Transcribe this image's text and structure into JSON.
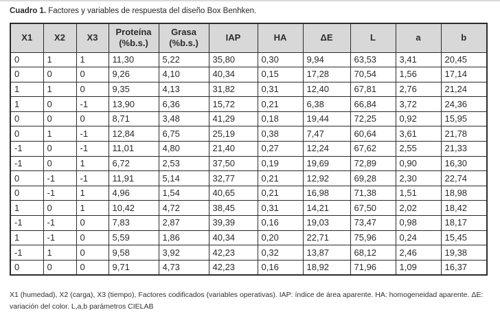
{
  "caption": {
    "label": "Cuadro 1.",
    "text": " Factores y variables de respuesta del diseño Box Benhken."
  },
  "table": {
    "header_bg": "#d8d8d8",
    "border_color": "#2a2a2a",
    "columns": [
      {
        "label": "X1",
        "sublabel": ""
      },
      {
        "label": "X2",
        "sublabel": ""
      },
      {
        "label": "X3",
        "sublabel": ""
      },
      {
        "label": "Proteína",
        "sublabel": "(%b.s.)"
      },
      {
        "label": "Grasa",
        "sublabel": "(%b.s.)"
      },
      {
        "label": "IAP",
        "sublabel": ""
      },
      {
        "label": "HA",
        "sublabel": ""
      },
      {
        "label": "ΔE",
        "sublabel": ""
      },
      {
        "label": "L",
        "sublabel": ""
      },
      {
        "label": "a",
        "sublabel": ""
      },
      {
        "label": "b",
        "sublabel": ""
      }
    ],
    "rows": [
      [
        "0",
        "1",
        "1",
        "11,30",
        "5,22",
        "35,80",
        "0,30",
        "9,94",
        "63,53",
        "3,41",
        "20,45"
      ],
      [
        "0",
        "0",
        "0",
        "9,26",
        "4,10",
        "40,34",
        "0,15",
        "17,28",
        "70,54",
        "1,56",
        "17,14"
      ],
      [
        "1",
        "1",
        "0",
        "9,35",
        "4,13",
        "31,82",
        "0,31",
        "12,40",
        "67,81",
        "2,76",
        "21,24"
      ],
      [
        "1",
        "0",
        "-1",
        "13,90",
        "6,36",
        "15,72",
        "0,21",
        "6,38",
        "66,84",
        "3,72",
        "24,36"
      ],
      [
        "0",
        "0",
        "0",
        "8,71",
        "3,48",
        "41,29",
        "0,18",
        "19,44",
        "72,25",
        "0,92",
        "15,95"
      ],
      [
        "0",
        "1",
        "-1",
        "12,84",
        "6,75",
        "25,19",
        "0,38",
        "7,47",
        "60,64",
        "3,61",
        "21,78"
      ],
      [
        "-1",
        "0",
        "-1",
        "11,01",
        "4,80",
        "21,40",
        "0,27",
        "12,24",
        "67,62",
        "2,55",
        "21,33"
      ],
      [
        "-1",
        "0",
        "1",
        "6,72",
        "2,53",
        "37,50",
        "0,19",
        "19,69",
        "72,89",
        "0,90",
        "16,30"
      ],
      [
        "0",
        "-1",
        "-1",
        "11,91",
        "5,14",
        "32,77",
        "0,21",
        "12,92",
        "69,28",
        "2,30",
        "22,74"
      ],
      [
        "0",
        "-1",
        "1",
        "4,96",
        "1,54",
        "40,65",
        "0,21",
        "16,98",
        "71,38",
        "1,51",
        "18,98"
      ],
      [
        "1",
        "0",
        "1",
        "10,42",
        "4,72",
        "38,45",
        "0,31",
        "14,21",
        "67,50",
        "2,02",
        "18,42"
      ],
      [
        "-1",
        "-1",
        "0",
        "7,83",
        "2,87",
        "39,39",
        "0,16",
        "19,03",
        "73,47",
        "0,98",
        "18,17"
      ],
      [
        "1",
        "-1",
        "0",
        "5,59",
        "1,86",
        "40,34",
        "0,20",
        "22,71",
        "75,96",
        "0,24",
        "15,45"
      ],
      [
        "-1",
        "1",
        "0",
        "9,58",
        "3,92",
        "42,23",
        "0,32",
        "13,87",
        "68,12",
        "2,46",
        "19,38"
      ],
      [
        "0",
        "0",
        "0",
        "9,71",
        "4,73",
        "42,23",
        "0,16",
        "18,92",
        "71,96",
        "1,09",
        "16,37"
      ]
    ]
  },
  "footnote": {
    "line1": "X1 (humedad), X2 (carga), X3 (tiempo), Factores codificados (variables operativas). IAP: índice de área aparente. HA: homogeneidad aparente. ΔE:",
    "line2": "variación del color. L,a,b parámetros CIELAB"
  }
}
